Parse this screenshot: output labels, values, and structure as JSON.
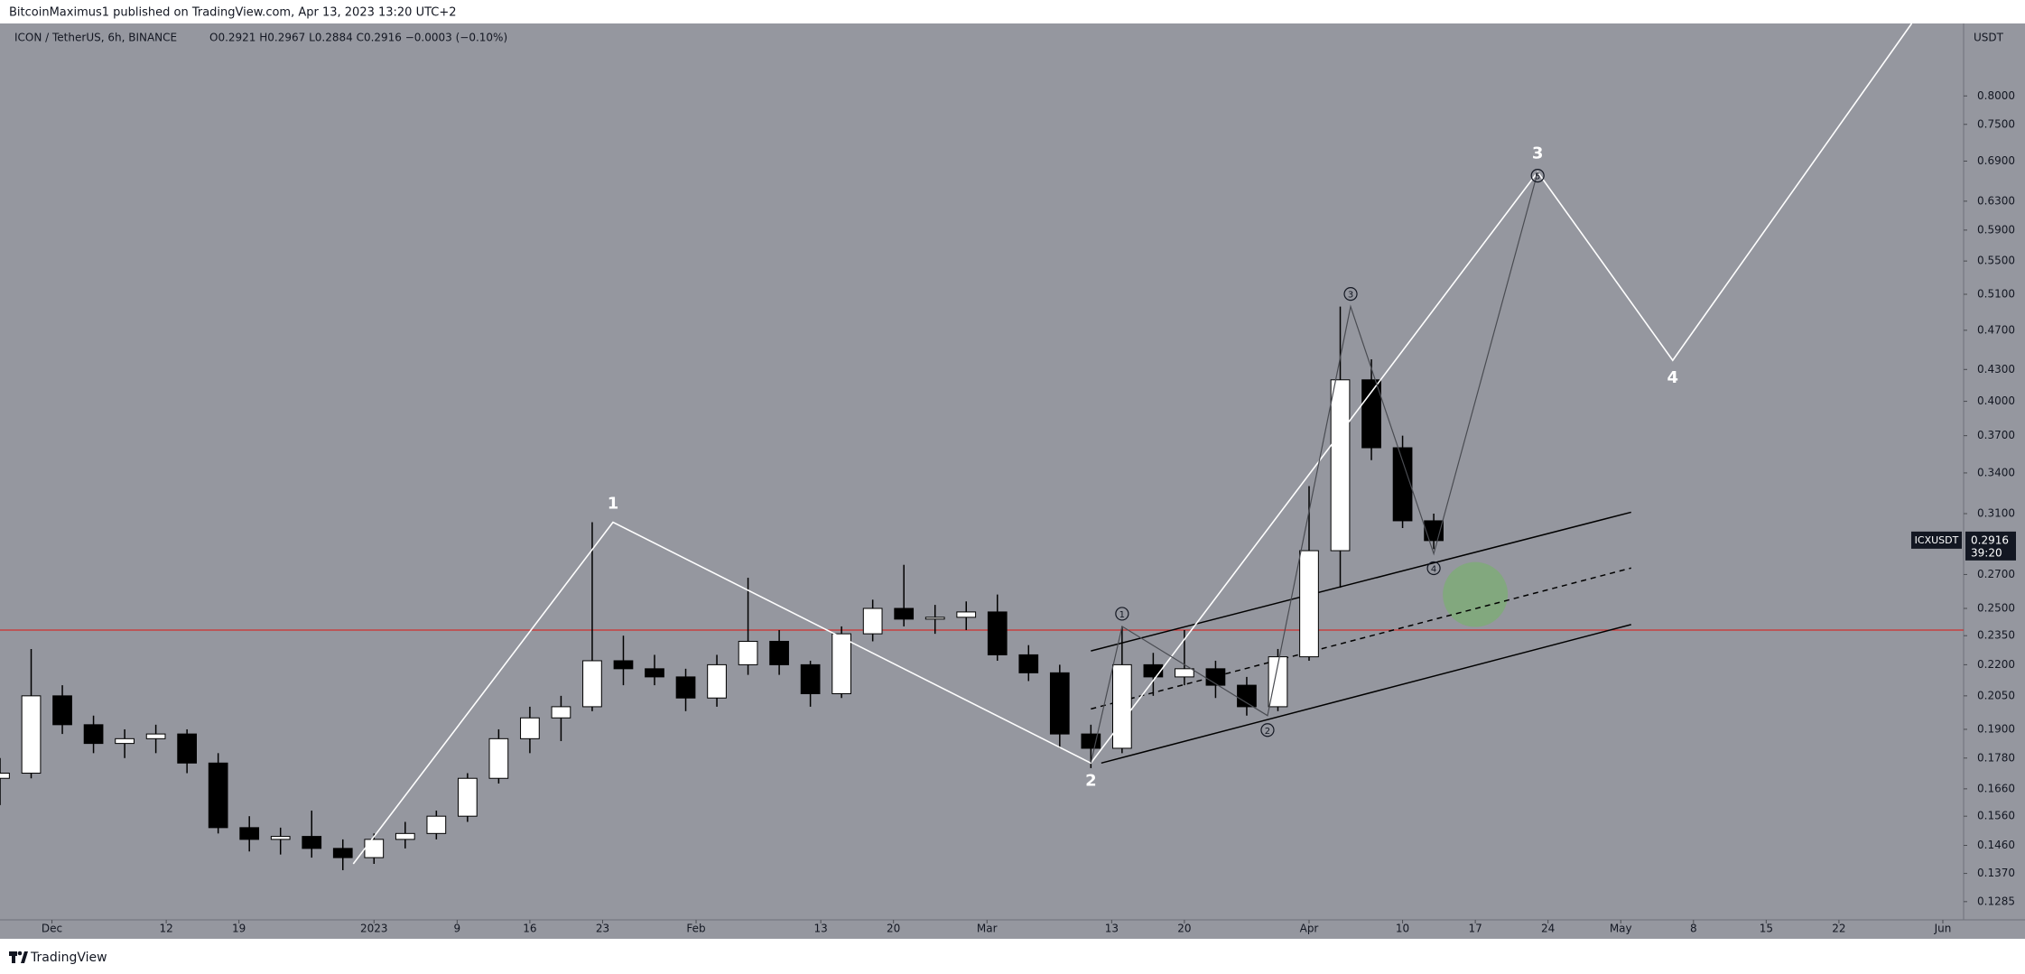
{
  "chart_data": {
    "type": "candlestick",
    "header": "BitcoinMaximus1 published on TradingView.com, Apr 13, 2023 13:20 UTC+2",
    "symbol": "ICON / TetherUS, 6h, BINANCE",
    "ohlc_legend": "O0.2921  H0.2967  L0.2884  C0.2916  −0.0003 (−0.10%)",
    "currency": "USDT",
    "footer": "TradingView",
    "log_scale": true,
    "grid": false,
    "background": "#95979f",
    "up_color": "#ffffff",
    "down_color": "#000000",
    "ylim": [
      0.1233,
      0.943
    ],
    "yticks": [
      {
        "value": 0.8,
        "label": "0.8000"
      },
      {
        "value": 0.75,
        "label": "0.7500"
      },
      {
        "value": 0.69,
        "label": "0.6900"
      },
      {
        "value": 0.63,
        "label": "0.6300"
      },
      {
        "value": 0.59,
        "label": "0.5900"
      },
      {
        "value": 0.55,
        "label": "0.5500"
      },
      {
        "value": 0.51,
        "label": "0.5100"
      },
      {
        "value": 0.47,
        "label": "0.4700"
      },
      {
        "value": 0.43,
        "label": "0.4300"
      },
      {
        "value": 0.4,
        "label": "0.4000"
      },
      {
        "value": 0.37,
        "label": "0.3700"
      },
      {
        "value": 0.34,
        "label": "0.3400"
      },
      {
        "value": 0.31,
        "label": "0.3100"
      },
      {
        "value": 0.27,
        "label": "0.2700"
      },
      {
        "value": 0.25,
        "label": "0.2500"
      },
      {
        "value": 0.235,
        "label": "0.2350"
      },
      {
        "value": 0.22,
        "label": "0.2200"
      },
      {
        "value": 0.205,
        "label": "0.2050"
      },
      {
        "value": 0.19,
        "label": "0.1900"
      },
      {
        "value": 0.178,
        "label": "0.1780"
      },
      {
        "value": 0.166,
        "label": "0.1660"
      },
      {
        "value": 0.156,
        "label": "0.1560"
      },
      {
        "value": 0.146,
        "label": "0.1460"
      },
      {
        "value": 0.137,
        "label": "0.1370"
      },
      {
        "value": 0.1285,
        "label": "0.1285"
      }
    ],
    "xlim": [
      "2022-11-26",
      "2023-06-03"
    ],
    "xticks": [
      {
        "value": "2022-12-01",
        "label": "Dec"
      },
      {
        "value": "2022-12-12",
        "label": "12"
      },
      {
        "value": "2022-12-19",
        "label": "19"
      },
      {
        "value": "2023-01-01",
        "label": "2023"
      },
      {
        "value": "2023-01-09",
        "label": "9"
      },
      {
        "value": "2023-01-16",
        "label": "16"
      },
      {
        "value": "2023-01-23",
        "label": "23"
      },
      {
        "value": "2023-02-01",
        "label": "Feb"
      },
      {
        "value": "2023-02-13",
        "label": "13"
      },
      {
        "value": "2023-02-20",
        "label": "20"
      },
      {
        "value": "2023-03-01",
        "label": "Mar"
      },
      {
        "value": "2023-03-13",
        "label": "13"
      },
      {
        "value": "2023-03-20",
        "label": "20"
      },
      {
        "value": "2023-04-01",
        "label": "Apr"
      },
      {
        "value": "2023-04-10",
        "label": "10"
      },
      {
        "value": "2023-04-17",
        "label": "17"
      },
      {
        "value": "2023-04-24",
        "label": "24"
      },
      {
        "value": "2023-05-01",
        "label": "May"
      },
      {
        "value": "2023-05-08",
        "label": "8"
      },
      {
        "value": "2023-05-15",
        "label": "15"
      },
      {
        "value": "2023-05-22",
        "label": "22"
      },
      {
        "value": "2023-06-01",
        "label": "Jun"
      }
    ],
    "x": [
      "2022-11-26",
      "2022-11-29",
      "2022-12-02",
      "2022-12-05",
      "2022-12-08",
      "2022-12-11",
      "2022-12-14",
      "2022-12-17",
      "2022-12-20",
      "2022-12-23",
      "2022-12-26",
      "2022-12-29",
      "2023-01-01",
      "2023-01-04",
      "2023-01-07",
      "2023-01-10",
      "2023-01-13",
      "2023-01-16",
      "2023-01-19",
      "2023-01-22",
      "2023-01-25",
      "2023-01-28",
      "2023-01-31",
      "2023-02-03",
      "2023-02-06",
      "2023-02-09",
      "2023-02-12",
      "2023-02-15",
      "2023-02-18",
      "2023-02-21",
      "2023-02-24",
      "2023-02-27",
      "2023-03-02",
      "2023-03-05",
      "2023-03-08",
      "2023-03-11",
      "2023-03-14",
      "2023-03-17",
      "2023-03-20",
      "2023-03-23",
      "2023-03-26",
      "2023-03-29",
      "2023-04-01",
      "2023-04-04",
      "2023-04-07",
      "2023-04-10",
      "2023-04-13"
    ],
    "open": [
      0.17,
      0.172,
      0.205,
      0.192,
      0.184,
      0.186,
      0.188,
      0.176,
      0.152,
      0.148,
      0.149,
      0.145,
      0.142,
      0.148,
      0.15,
      0.156,
      0.17,
      0.186,
      0.195,
      0.2,
      0.222,
      0.218,
      0.214,
      0.204,
      0.22,
      0.232,
      0.22,
      0.206,
      0.236,
      0.25,
      0.244,
      0.245,
      0.248,
      0.225,
      0.216,
      0.188,
      0.182,
      0.22,
      0.214,
      0.218,
      0.21,
      0.2,
      0.224,
      0.285,
      0.42,
      0.36,
      0.305
    ],
    "high": [
      0.178,
      0.228,
      0.21,
      0.196,
      0.19,
      0.192,
      0.19,
      0.18,
      0.156,
      0.152,
      0.158,
      0.148,
      0.15,
      0.154,
      0.158,
      0.172,
      0.19,
      0.2,
      0.205,
      0.304,
      0.235,
      0.225,
      0.218,
      0.225,
      0.268,
      0.238,
      0.222,
      0.24,
      0.255,
      0.276,
      0.252,
      0.254,
      0.258,
      0.23,
      0.22,
      0.192,
      0.24,
      0.226,
      0.238,
      0.222,
      0.214,
      0.228,
      0.33,
      0.496,
      0.44,
      0.37,
      0.31
    ],
    "low": [
      0.16,
      0.17,
      0.188,
      0.18,
      0.178,
      0.18,
      0.172,
      0.15,
      0.144,
      0.143,
      0.142,
      0.138,
      0.14,
      0.145,
      0.148,
      0.154,
      0.168,
      0.18,
      0.185,
      0.198,
      0.21,
      0.21,
      0.198,
      0.2,
      0.215,
      0.215,
      0.2,
      0.204,
      0.232,
      0.24,
      0.236,
      0.238,
      0.222,
      0.212,
      0.182,
      0.174,
      0.18,
      0.205,
      0.21,
      0.204,
      0.196,
      0.198,
      0.222,
      0.262,
      0.35,
      0.3,
      0.286
    ],
    "close": [
      0.172,
      0.205,
      0.192,
      0.184,
      0.186,
      0.188,
      0.176,
      0.152,
      0.148,
      0.149,
      0.145,
      0.142,
      0.148,
      0.15,
      0.156,
      0.17,
      0.186,
      0.195,
      0.2,
      0.222,
      0.218,
      0.214,
      0.204,
      0.22,
      0.232,
      0.22,
      0.206,
      0.236,
      0.25,
      0.244,
      0.245,
      0.248,
      0.225,
      0.216,
      0.188,
      0.182,
      0.22,
      0.214,
      0.218,
      0.21,
      0.2,
      0.224,
      0.285,
      0.42,
      0.36,
      0.305,
      0.2916
    ],
    "horizontal_line": {
      "value": 0.238,
      "color": "#d0302f"
    },
    "price_tag": {
      "symbol": "ICXUSDT",
      "value": 0.2916,
      "value_label": "0.2916",
      "countdown": "39:20"
    },
    "waves": [
      {
        "color": "#ffffff",
        "circled": false,
        "x": [
          "2022-12-30",
          "2023-01-24",
          "2023-03-11",
          "2023-04-23",
          "2023-05-06",
          "2023-05-29"
        ],
        "y": [
          0.14,
          0.304,
          0.176,
          0.673,
          0.439,
          0.943
        ],
        "labels": [
          null,
          "1",
          "2",
          "3",
          "4",
          null
        ]
      },
      {
        "color": "#4a4c52",
        "circled": true,
        "x": [
          "2023-03-11",
          "2023-03-14",
          "2023-03-28",
          "2023-04-05",
          "2023-04-13",
          "2023-04-23"
        ],
        "y": [
          0.176,
          0.24,
          0.196,
          0.496,
          0.283,
          0.673
        ],
        "labels": [
          null,
          "1",
          "2",
          "3",
          "4",
          "5"
        ]
      }
    ],
    "channel": [
      {
        "dashed": false,
        "x": [
          "2023-03-11",
          "2023-05-02"
        ],
        "y": [
          0.227,
          0.311
        ]
      },
      {
        "dashed": true,
        "x": [
          "2023-03-11",
          "2023-05-02"
        ],
        "y": [
          0.199,
          0.274
        ]
      },
      {
        "dashed": false,
        "x": [
          "2023-03-12",
          "2023-05-02"
        ],
        "y": [
          0.176,
          0.241
        ]
      }
    ],
    "target_zone": {
      "x": "2023-04-17",
      "y": 0.258,
      "color": "#7faa78"
    }
  }
}
